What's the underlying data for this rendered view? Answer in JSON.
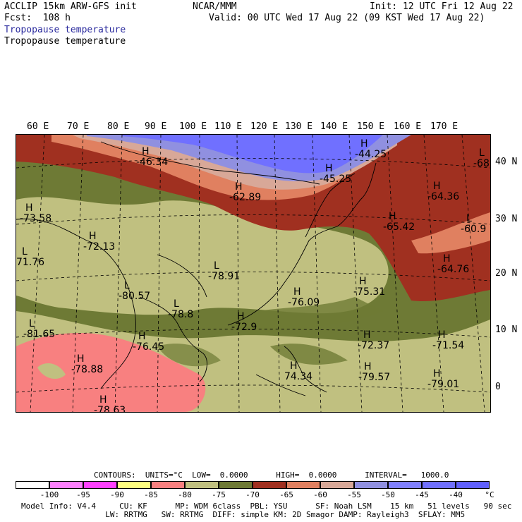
{
  "header": {
    "model": "ACCLIP 15km ARW-GFS init",
    "fcst": "Fcst:  108 h",
    "center": "NCAR/MMM",
    "init": "Init: 12 UTC Fri 12 Aug 22",
    "valid": "Valid: 00 UTC Wed 17 Aug 22 (09 KST Wed 17 Aug 22)",
    "field_blue": "Tropopause temperature",
    "field_black": "Tropopause temperature"
  },
  "map": {
    "lon_labels": [
      "60 E",
      "70 E",
      "80 E",
      "90 E",
      "100 E",
      "110 E",
      "120 E",
      "130 E",
      "140 E",
      "150 E",
      "160 E",
      "170 E"
    ],
    "lat_labels": [
      "40 N",
      "30 N",
      "20 N",
      "10 N",
      "0"
    ],
    "markers": [
      {
        "sym": "H",
        "val": "-46.34"
      },
      {
        "sym": "H",
        "val": "-44.25"
      },
      {
        "sym": "H",
        "val": "-45.25"
      },
      {
        "sym": "L",
        "val": "-68"
      },
      {
        "sym": "H",
        "val": "-62.89"
      },
      {
        "sym": "H",
        "val": "-64.36"
      },
      {
        "sym": "H",
        "val": "-73.58"
      },
      {
        "sym": "H",
        "val": "-65.42"
      },
      {
        "sym": "L",
        "val": "-60.9"
      },
      {
        "sym": "H",
        "val": "-72.13"
      },
      {
        "sym": "L",
        "val": "71.76"
      },
      {
        "sym": "L",
        "val": "-78.91"
      },
      {
        "sym": "H",
        "val": "-64.76"
      },
      {
        "sym": "H",
        "val": "-75.31"
      },
      {
        "sym": "L",
        "val": "-80.57"
      },
      {
        "sym": "H",
        "val": "-76.09"
      },
      {
        "sym": "L",
        "val": "-78.8"
      },
      {
        "sym": "L",
        "val": "-81.65"
      },
      {
        "sym": "H",
        "val": "-72.9"
      },
      {
        "sym": "H",
        "val": "-76.45"
      },
      {
        "sym": "H",
        "val": "-72.37"
      },
      {
        "sym": "H",
        "val": "-71.54"
      },
      {
        "sym": "H",
        "val": "-78.88"
      },
      {
        "sym": "H",
        "val": "-79.57"
      },
      {
        "sym": "H",
        "val": "-79.01"
      },
      {
        "sym": "H",
        "val": "74.34"
      },
      {
        "sym": "H",
        "val": "-78.63"
      }
    ]
  },
  "contours_line": "CONTOURS:  UNITS=°C  LOW=  0.0000      HIGH=  0.0000      INTERVAL=   1000.0",
  "colorbar": {
    "colors": [
      "#ffffff",
      "#ff80ff",
      "#ff40ff",
      "#ffff80",
      "#f88080",
      "#c0c080",
      "#6e7a35",
      "#a03020",
      "#e08060",
      "#d8a898",
      "#9090e0",
      "#8080ff",
      "#7070ff",
      "#6060ff"
    ],
    "labels": [
      "-100",
      "-95",
      "-90",
      "-85",
      "-80",
      "-75",
      "-70",
      "-65",
      "-60",
      "-55",
      "-50",
      "-45",
      "-40"
    ],
    "unit": "°C"
  },
  "footer": {
    "line1": "Model Info: V4.4     CU: KF      MP: WDM 6class  PBL: YSU      SF: Noah LSM    15 km   51 levels   90 sec",
    "line2": "                  LW: RRTMG   SW: RRTMG  DIFF: simple KM: 2D Smagor DAMP: Rayleigh3  SFLAY: MM5"
  }
}
